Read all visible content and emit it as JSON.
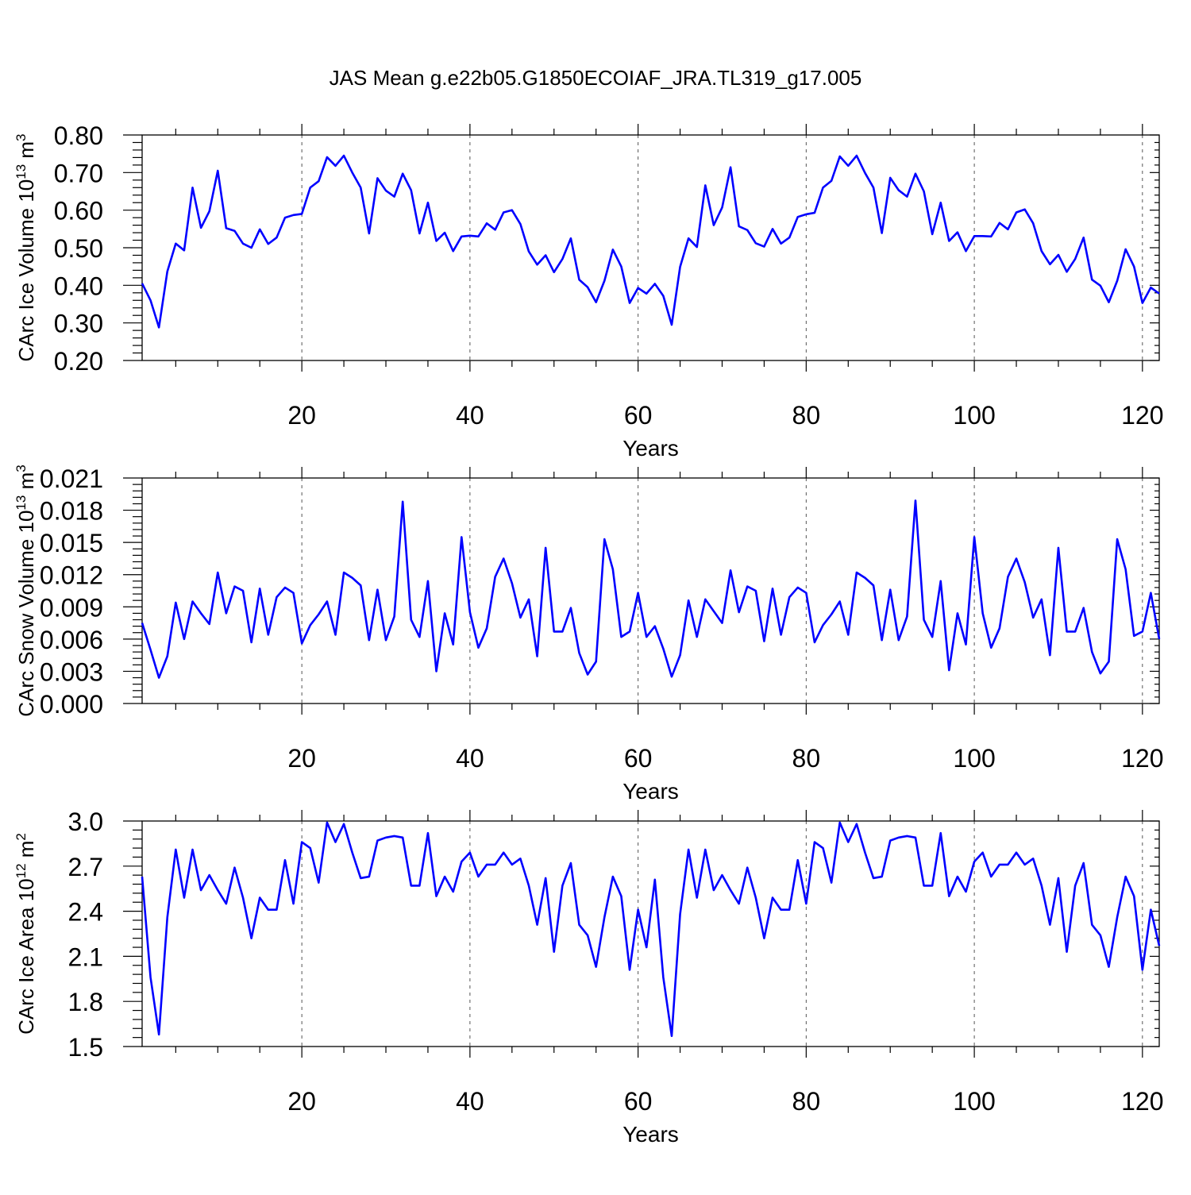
{
  "title": "JAS Mean g.e22b05.G1850ECOIAF_JRA.TL319_g17.005",
  "colors": {
    "line": "#0000ff",
    "axis": "#000000",
    "grid": "#555555"
  },
  "chart_data": [
    {
      "type": "line",
      "name": "ice-volume",
      "ylabel": "CArc Ice Volume 10",
      "ylabel_exp": "13",
      "ylabel_unit": " m",
      "ylabel_unit_exp": "3",
      "xlabel": "Years",
      "xlim": [
        1,
        122
      ],
      "ylim": [
        0.2,
        0.8
      ],
      "xticks": [
        20,
        40,
        60,
        80,
        100,
        120
      ],
      "xtick_labels": [
        "20",
        "40",
        "60",
        "80",
        "100",
        "120"
      ],
      "yticks": [
        0.2,
        0.3,
        0.4,
        0.5,
        0.6,
        0.7,
        0.8
      ],
      "ytick_labels": [
        "0.20",
        "0.30",
        "0.40",
        "0.50",
        "0.60",
        "0.70",
        "0.80"
      ],
      "values": [
        0.405,
        0.36,
        0.288,
        0.437,
        0.511,
        0.493,
        0.66,
        0.553,
        0.597,
        0.705,
        0.552,
        0.545,
        0.511,
        0.5,
        0.549,
        0.51,
        0.527,
        0.58,
        0.587,
        0.59,
        0.66,
        0.677,
        0.741,
        0.718,
        0.745,
        0.7,
        0.66,
        0.538,
        0.685,
        0.652,
        0.636,
        0.697,
        0.653,
        0.538,
        0.62,
        0.518,
        0.54,
        0.491,
        0.53,
        0.532,
        0.53,
        0.565,
        0.548,
        0.594,
        0.6,
        0.563,
        0.49,
        0.455,
        0.48,
        0.435,
        0.47,
        0.525,
        0.415,
        0.395,
        0.355,
        0.412,
        0.495,
        0.45,
        0.353,
        0.393,
        0.378,
        0.404,
        0.372,
        0.295,
        0.449,
        0.525,
        0.502,
        0.666,
        0.56,
        0.607,
        0.714,
        0.557,
        0.547,
        0.512,
        0.503,
        0.55,
        0.511,
        0.527,
        0.582,
        0.589,
        0.593,
        0.66,
        0.678,
        0.743,
        0.718,
        0.745,
        0.699,
        0.66,
        0.539,
        0.686,
        0.653,
        0.636,
        0.697,
        0.65,
        0.536,
        0.62,
        0.518,
        0.541,
        0.491,
        0.531,
        0.531,
        0.53,
        0.566,
        0.549,
        0.594,
        0.602,
        0.565,
        0.491,
        0.456,
        0.481,
        0.436,
        0.47,
        0.527,
        0.415,
        0.399,
        0.355,
        0.412,
        0.496,
        0.45,
        0.353,
        0.394,
        0.378
      ]
    },
    {
      "type": "line",
      "name": "snow-volume",
      "ylabel": "CArc Snow Volume 10",
      "ylabel_exp": "13",
      "ylabel_unit": " m",
      "ylabel_unit_exp": "3",
      "xlabel": "Years",
      "xlim": [
        1,
        122
      ],
      "ylim": [
        0.0,
        0.021
      ],
      "xticks": [
        20,
        40,
        60,
        80,
        100,
        120
      ],
      "xtick_labels": [
        "20",
        "40",
        "60",
        "80",
        "100",
        "120"
      ],
      "yticks": [
        0.0,
        0.003,
        0.006,
        0.009,
        0.012,
        0.015,
        0.018,
        0.021
      ],
      "ytick_labels": [
        "0.000",
        "0.003",
        "0.006",
        "0.009",
        "0.012",
        "0.015",
        "0.018",
        "0.021"
      ],
      "values": [
        0.0075,
        0.005,
        0.0024,
        0.0044,
        0.0094,
        0.006,
        0.0095,
        0.0084,
        0.0074,
        0.0122,
        0.0084,
        0.0109,
        0.0105,
        0.0057,
        0.0107,
        0.0064,
        0.0099,
        0.0108,
        0.0103,
        0.0056,
        0.0073,
        0.0083,
        0.0095,
        0.0064,
        0.0122,
        0.0117,
        0.011,
        0.0059,
        0.0106,
        0.0059,
        0.0081,
        0.0188,
        0.0078,
        0.0062,
        0.0114,
        0.003,
        0.0084,
        0.0055,
        0.0155,
        0.0085,
        0.0052,
        0.007,
        0.0118,
        0.0135,
        0.0112,
        0.008,
        0.0097,
        0.0044,
        0.0145,
        0.0067,
        0.0067,
        0.0089,
        0.0047,
        0.0027,
        0.0039,
        0.0153,
        0.0125,
        0.0062,
        0.0067,
        0.0103,
        0.0062,
        0.0072,
        0.0051,
        0.0025,
        0.0045,
        0.0096,
        0.0062,
        0.0097,
        0.0086,
        0.0075,
        0.0124,
        0.0085,
        0.0109,
        0.0105,
        0.0058,
        0.0107,
        0.0064,
        0.0099,
        0.0108,
        0.0103,
        0.0057,
        0.0073,
        0.0083,
        0.0095,
        0.0064,
        0.0122,
        0.0117,
        0.011,
        0.0059,
        0.0106,
        0.0059,
        0.0081,
        0.0189,
        0.0078,
        0.0062,
        0.0114,
        0.0031,
        0.0084,
        0.0055,
        0.0155,
        0.0084,
        0.0052,
        0.007,
        0.0118,
        0.0135,
        0.0113,
        0.008,
        0.0097,
        0.0045,
        0.0145,
        0.0067,
        0.0067,
        0.0089,
        0.0048,
        0.0028,
        0.0039,
        0.0153,
        0.0125,
        0.0063,
        0.0067,
        0.0103,
        0.006
      ]
    },
    {
      "type": "line",
      "name": "ice-area",
      "ylabel": "CArc Ice Area 10",
      "ylabel_exp": "12",
      "ylabel_unit": " m",
      "ylabel_unit_exp": "2",
      "xlabel": "Years",
      "xlim": [
        1,
        122
      ],
      "ylim": [
        1.5,
        3.0
      ],
      "xticks": [
        20,
        40,
        60,
        80,
        100,
        120
      ],
      "xtick_labels": [
        "20",
        "40",
        "60",
        "80",
        "100",
        "120"
      ],
      "yticks": [
        1.5,
        1.8,
        2.1,
        2.4,
        2.7,
        3.0
      ],
      "ytick_labels": [
        "1.5",
        "1.8",
        "2.1",
        "2.4",
        "2.7",
        "3.0"
      ],
      "values": [
        2.63,
        1.96,
        1.58,
        2.36,
        2.81,
        2.49,
        2.81,
        2.54,
        2.64,
        2.54,
        2.45,
        2.69,
        2.49,
        2.22,
        2.49,
        2.41,
        2.41,
        2.74,
        2.45,
        2.86,
        2.82,
        2.59,
        2.99,
        2.86,
        2.98,
        2.79,
        2.62,
        2.63,
        2.87,
        2.89,
        2.9,
        2.89,
        2.57,
        2.57,
        2.92,
        2.5,
        2.63,
        2.53,
        2.73,
        2.79,
        2.63,
        2.71,
        2.71,
        2.79,
        2.71,
        2.75,
        2.57,
        2.31,
        2.62,
        2.13,
        2.57,
        2.72,
        2.31,
        2.24,
        2.03,
        2.36,
        2.63,
        2.5,
        2.01,
        2.41,
        2.16,
        2.61,
        1.96,
        1.57,
        2.38,
        2.81,
        2.49,
        2.81,
        2.54,
        2.64,
        2.54,
        2.45,
        2.69,
        2.49,
        2.22,
        2.49,
        2.41,
        2.41,
        2.74,
        2.45,
        2.86,
        2.82,
        2.59,
        2.99,
        2.86,
        2.98,
        2.79,
        2.62,
        2.63,
        2.87,
        2.89,
        2.9,
        2.89,
        2.57,
        2.57,
        2.92,
        2.5,
        2.63,
        2.53,
        2.73,
        2.79,
        2.63,
        2.71,
        2.71,
        2.79,
        2.71,
        2.75,
        2.57,
        2.31,
        2.62,
        2.13,
        2.57,
        2.72,
        2.31,
        2.24,
        2.03,
        2.36,
        2.63,
        2.5,
        2.01,
        2.41,
        2.17
      ]
    }
  ]
}
